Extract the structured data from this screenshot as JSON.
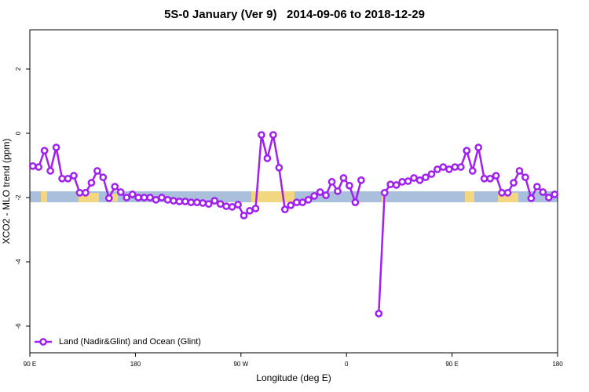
{
  "chart_data": {
    "type": "line",
    "title": "5S-0 January (Ver 9)   2014-09-06 to 2018-12-29",
    "x_label": "Longitude (deg E)",
    "y_label": "XCO2 - MLO trend (ppm)",
    "x": [
      92.5,
      97.5,
      102.5,
      107.5,
      112.5,
      117.5,
      122.5,
      127.5,
      132.5,
      137.5,
      142.5,
      147.5,
      152.5,
      157.5,
      162.5,
      167.5,
      172.5,
      177.5,
      182.5,
      187.5,
      192.5,
      197.5,
      202.5,
      207.5,
      212.5,
      217.5,
      222.5,
      227.5,
      232.5,
      237.5,
      242.5,
      247.5,
      252.5,
      257.5,
      262.5,
      267.5,
      272.5,
      277.5,
      282.5,
      287.5,
      292.5,
      297.5,
      302.5,
      307.5,
      312.5,
      317.5,
      322.5,
      327.5,
      332.5,
      337.5,
      342.5,
      347.5,
      352.5,
      357.5,
      362.5,
      367.5,
      372.5,
      377.5,
      382.5,
      387.5,
      392.5,
      397.5,
      402.5,
      407.5,
      412.5,
      417.5,
      422.5,
      427.5,
      432.5,
      437.5,
      442.5,
      447.5,
      452.5,
      457.5,
      462.5,
      467.5,
      472.5,
      477.5,
      482.5,
      487.5,
      492.5,
      497.5,
      502.5,
      507.5,
      512.5,
      517.5,
      522.5,
      527.5,
      532.5,
      537.5
    ],
    "series": [
      {
        "name": "Land (Nadir&Glint) and Ocean (Glint)",
        "color": "#a020f0",
        "values": [
          -1.02,
          -1.05,
          -0.54,
          -1.17,
          -0.44,
          -1.41,
          -1.41,
          -1.32,
          -1.85,
          -1.85,
          -1.54,
          -1.17,
          -1.37,
          -2.02,
          -1.66,
          -1.83,
          -2.0,
          -1.9,
          -2.0,
          -2.0,
          -2.0,
          -2.07,
          -2.0,
          -2.07,
          -2.1,
          -2.12,
          -2.12,
          -2.15,
          -2.15,
          -2.17,
          -2.2,
          -2.1,
          -2.2,
          -2.27,
          -2.29,
          -2.22,
          -2.56,
          -2.41,
          -2.34,
          -0.05,
          -0.78,
          -0.05,
          -1.07,
          -2.37,
          -2.24,
          -2.15,
          -2.15,
          -2.07,
          -1.95,
          -1.83,
          -1.93,
          -1.51,
          -1.8,
          -1.39,
          -1.63,
          -2.15,
          -1.46,
          null,
          null,
          -5.61,
          -1.85,
          -1.59,
          -1.61,
          -1.51,
          -1.49,
          -1.39,
          -1.46,
          -1.37,
          -1.27,
          -1.12,
          -1.05,
          -1.12,
          -1.05,
          -1.05,
          -0.54,
          -1.17,
          -0.44,
          -1.41,
          -1.41,
          -1.32,
          -1.85,
          -1.85,
          -1.54,
          -1.17,
          -1.37,
          -2.02,
          -1.66,
          -1.83,
          -2.0,
          -1.9
        ]
      }
    ],
    "xlim": [
      90,
      540
    ],
    "xticks": [
      {
        "value": 90,
        "label": "90 E"
      },
      180,
      {
        "value": 270,
        "label": "90 W"
      },
      {
        "value": 360,
        "label": "0"
      },
      {
        "value": 450,
        "label": "90 E"
      },
      {
        "value": 540,
        "label": "180"
      }
    ],
    "ylim": [
      -6.83,
      3.22
    ],
    "yticks": [
      2,
      0,
      -2,
      -4,
      -6
    ],
    "legend": "bottom-left"
  }
}
